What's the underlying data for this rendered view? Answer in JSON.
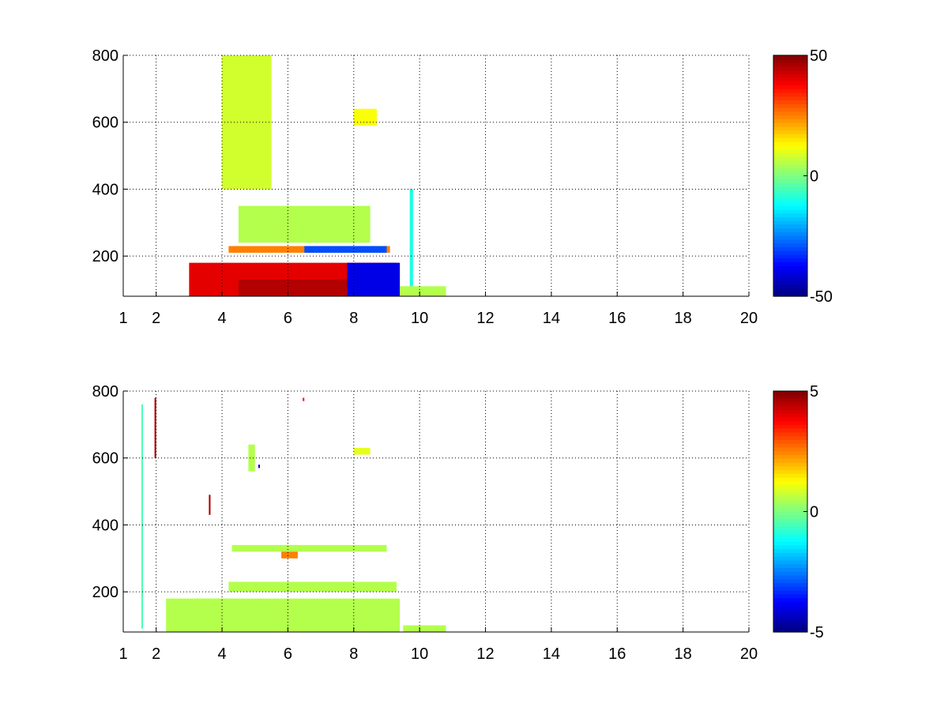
{
  "chart_data": [
    {
      "type": "heatmap",
      "xlim": [
        1,
        20
      ],
      "ylim": [
        80,
        800
      ],
      "x_ticks": [
        1,
        2,
        4,
        6,
        8,
        10,
        12,
        14,
        16,
        18,
        20
      ],
      "x_tick_labels": [
        "1",
        "2",
        "4",
        "6",
        "8",
        "10",
        "12",
        "14",
        "16",
        "18",
        "20"
      ],
      "y_ticks": [
        200,
        400,
        600,
        800
      ],
      "y_tick_labels": [
        "200",
        "400",
        "600",
        "800"
      ],
      "grid": true,
      "colormap": "jet",
      "clim": [
        -50,
        50
      ],
      "colorbar_ticks": [
        50,
        0,
        -50
      ],
      "colorbar_tick_labels": [
        "50",
        "0",
        "-50"
      ],
      "regions": [
        {
          "x": [
            3.0,
            9.3
          ],
          "y": [
            80,
            180
          ],
          "value": 40
        },
        {
          "x": [
            4.5,
            9.3
          ],
          "y": [
            80,
            130
          ],
          "value": 45
        },
        {
          "x": [
            7.8,
            9.4
          ],
          "y": [
            80,
            180
          ],
          "value": -40
        },
        {
          "x": [
            4.2,
            9.1
          ],
          "y": [
            210,
            230
          ],
          "value": 25
        },
        {
          "x": [
            6.5,
            9.0
          ],
          "y": [
            210,
            230
          ],
          "value": -30
        },
        {
          "x": [
            4.5,
            8.5
          ],
          "y": [
            240,
            350
          ],
          "value": 5
        },
        {
          "x": [
            4.0,
            5.5
          ],
          "y": [
            400,
            800
          ],
          "value": 8
        },
        {
          "x": [
            8.0,
            8.7
          ],
          "y": [
            590,
            640
          ],
          "value": 12
        },
        {
          "x": [
            9.7,
            9.8
          ],
          "y": [
            80,
            400
          ],
          "value": -10
        },
        {
          "x": [
            9.4,
            10.8
          ],
          "y": [
            80,
            110
          ],
          "value": 5
        }
      ]
    },
    {
      "type": "heatmap",
      "xlim": [
        1,
        20
      ],
      "ylim": [
        80,
        800
      ],
      "x_ticks": [
        1,
        2,
        4,
        6,
        8,
        10,
        12,
        14,
        16,
        18,
        20
      ],
      "x_tick_labels": [
        "1",
        "2",
        "4",
        "6",
        "8",
        "10",
        "12",
        "14",
        "16",
        "18",
        "20"
      ],
      "y_ticks": [
        200,
        400,
        600,
        800
      ],
      "y_tick_labels": [
        "200",
        "400",
        "600",
        "800"
      ],
      "grid": true,
      "colormap": "jet",
      "clim": [
        -5,
        5
      ],
      "colorbar_ticks": [
        5,
        0,
        -5
      ],
      "colorbar_tick_labels": [
        "5",
        "0",
        "-5"
      ],
      "regions": [
        {
          "x": [
            3.2,
            9.4
          ],
          "y": [
            80,
            180
          ],
          "value": 0.5
        },
        {
          "x": [
            2.3,
            4.3
          ],
          "y": [
            80,
            180
          ],
          "value": 0.5
        },
        {
          "x": [
            4.2,
            9.3
          ],
          "y": [
            200,
            230
          ],
          "value": 0.5
        },
        {
          "x": [
            4.3,
            9.0
          ],
          "y": [
            320,
            340
          ],
          "value": 0.5
        },
        {
          "x": [
            5.8,
            6.3
          ],
          "y": [
            300,
            320
          ],
          "value": 2.5
        },
        {
          "x": [
            8.0,
            8.5
          ],
          "y": [
            610,
            630
          ],
          "value": 1.0
        },
        {
          "x": [
            4.8,
            5.0
          ],
          "y": [
            560,
            640
          ],
          "value": 0.5
        },
        {
          "x": [
            3.6,
            3.65
          ],
          "y": [
            430,
            490
          ],
          "value": 4.5
        },
        {
          "x": [
            1.55,
            1.6
          ],
          "y": [
            90,
            760
          ],
          "value": -0.5
        },
        {
          "x": [
            1.95,
            2.0
          ],
          "y": [
            600,
            780
          ],
          "value": 4.5
        },
        {
          "x": [
            5.1,
            5.15
          ],
          "y": [
            570,
            580
          ],
          "value": -4.0
        },
        {
          "x": [
            6.45,
            6.5
          ],
          "y": [
            770,
            780
          ],
          "value": 3.5
        },
        {
          "x": [
            9.5,
            10.8
          ],
          "y": [
            80,
            100
          ],
          "value": 0.5
        }
      ]
    }
  ]
}
